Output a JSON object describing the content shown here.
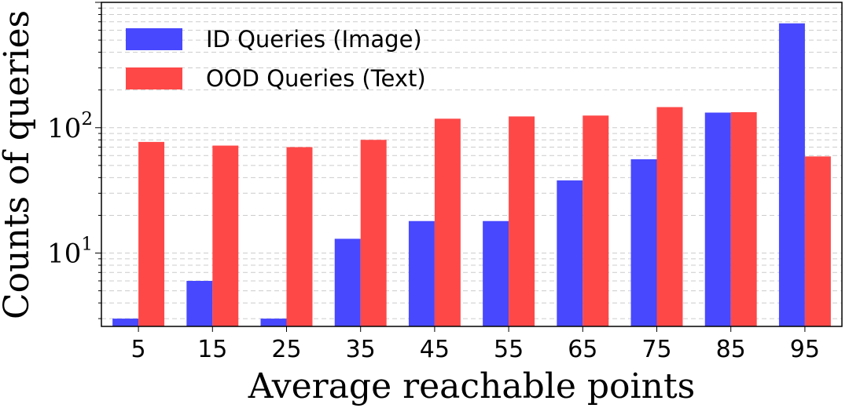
{
  "chart_data": {
    "type": "bar",
    "xlabel": "Average reachable points",
    "ylabel": "Counts of queries",
    "yscale": "log",
    "ylim": [
      2.6,
      1000
    ],
    "yticks": [
      {
        "base": "10",
        "exp": "1",
        "value": 10
      },
      {
        "base": "10",
        "exp": "2",
        "value": 100
      }
    ],
    "grid": "y-major-and-minor",
    "legend_position": "top-left",
    "categories": [
      "5",
      "15",
      "25",
      "35",
      "45",
      "55",
      "65",
      "75",
      "85",
      "95"
    ],
    "series": [
      {
        "name": "ID Queries (Image)",
        "color": "#4848fe",
        "values": [
          3,
          6,
          3,
          13,
          18,
          18,
          38,
          56,
          132,
          680
        ]
      },
      {
        "name": "OOD Queries (Text)",
        "color": "#fe4848",
        "values": [
          77,
          72,
          70,
          80,
          118,
          123,
          125,
          146,
          133,
          59
        ]
      }
    ]
  }
}
